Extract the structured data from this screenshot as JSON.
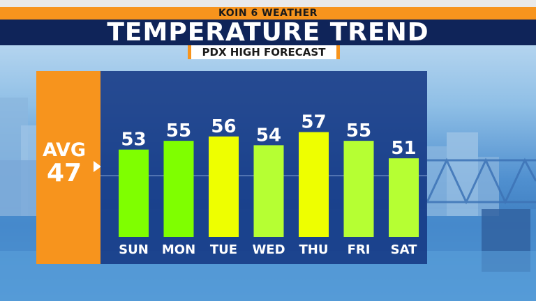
{
  "header": {
    "station": "KOIN 6 WEATHER",
    "title": "TEMPERATURE TREND",
    "subtitle": "PDX HIGH FORECAST"
  },
  "average": {
    "label": "AVG",
    "value": "47"
  },
  "colors": {
    "orange": "#f7941d",
    "navy": "#0f2459",
    "panel": "#153884",
    "bar_green": "#7fff00",
    "bar_yellow": "#eeff00",
    "bar_lightgreen": "#b6ff33"
  },
  "chart_data": {
    "type": "bar",
    "categories": [
      "SUN",
      "MON",
      "TUE",
      "WED",
      "THU",
      "FRI",
      "SAT"
    ],
    "values": [
      53,
      55,
      56,
      54,
      57,
      55,
      51
    ],
    "bar_colors": [
      "#7fff00",
      "#7fff00",
      "#eeff00",
      "#b6ff33",
      "#eeff00",
      "#b6ff33",
      "#b6ff33"
    ],
    "reference_line": 47,
    "ylim": [
      33,
      63
    ]
  }
}
